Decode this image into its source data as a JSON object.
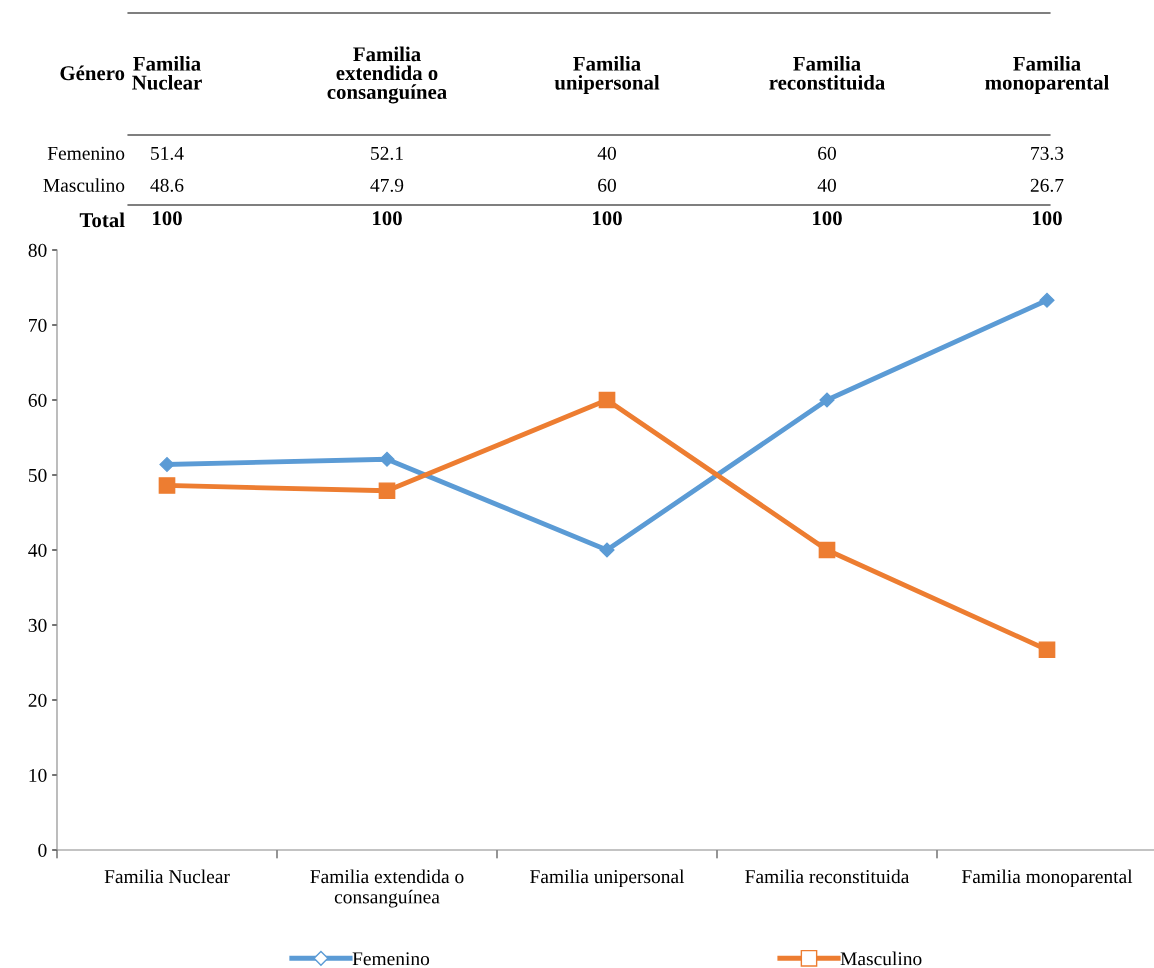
{
  "chart_data": {
    "type": "line",
    "categories": [
      "Familia Nuclear",
      "Familia extendida o consanguínea",
      "Familia unipersonal",
      "Familia reconstituida",
      "Familia monoparental"
    ],
    "series": [
      {
        "name": "Femenino",
        "color": "#5b9bd5",
        "marker": "diamond",
        "values": [
          51.4,
          52.1,
          40,
          60,
          73.3
        ]
      },
      {
        "name": "Masculino",
        "color": "#ed7d31",
        "marker": "square",
        "values": [
          48.6,
          47.9,
          60,
          40,
          26.7
        ]
      }
    ],
    "ylim": [
      0,
      80
    ],
    "yticks": [
      0,
      10,
      20,
      30,
      40,
      50,
      60,
      70,
      80
    ],
    "data_labels": true,
    "totals": [
      "100",
      "100",
      "100",
      "100",
      "100"
    ],
    "annotations": [
      "Género",
      "Total"
    ],
    "grid": false,
    "legend": "bottom",
    "line_style": "solid"
  }
}
